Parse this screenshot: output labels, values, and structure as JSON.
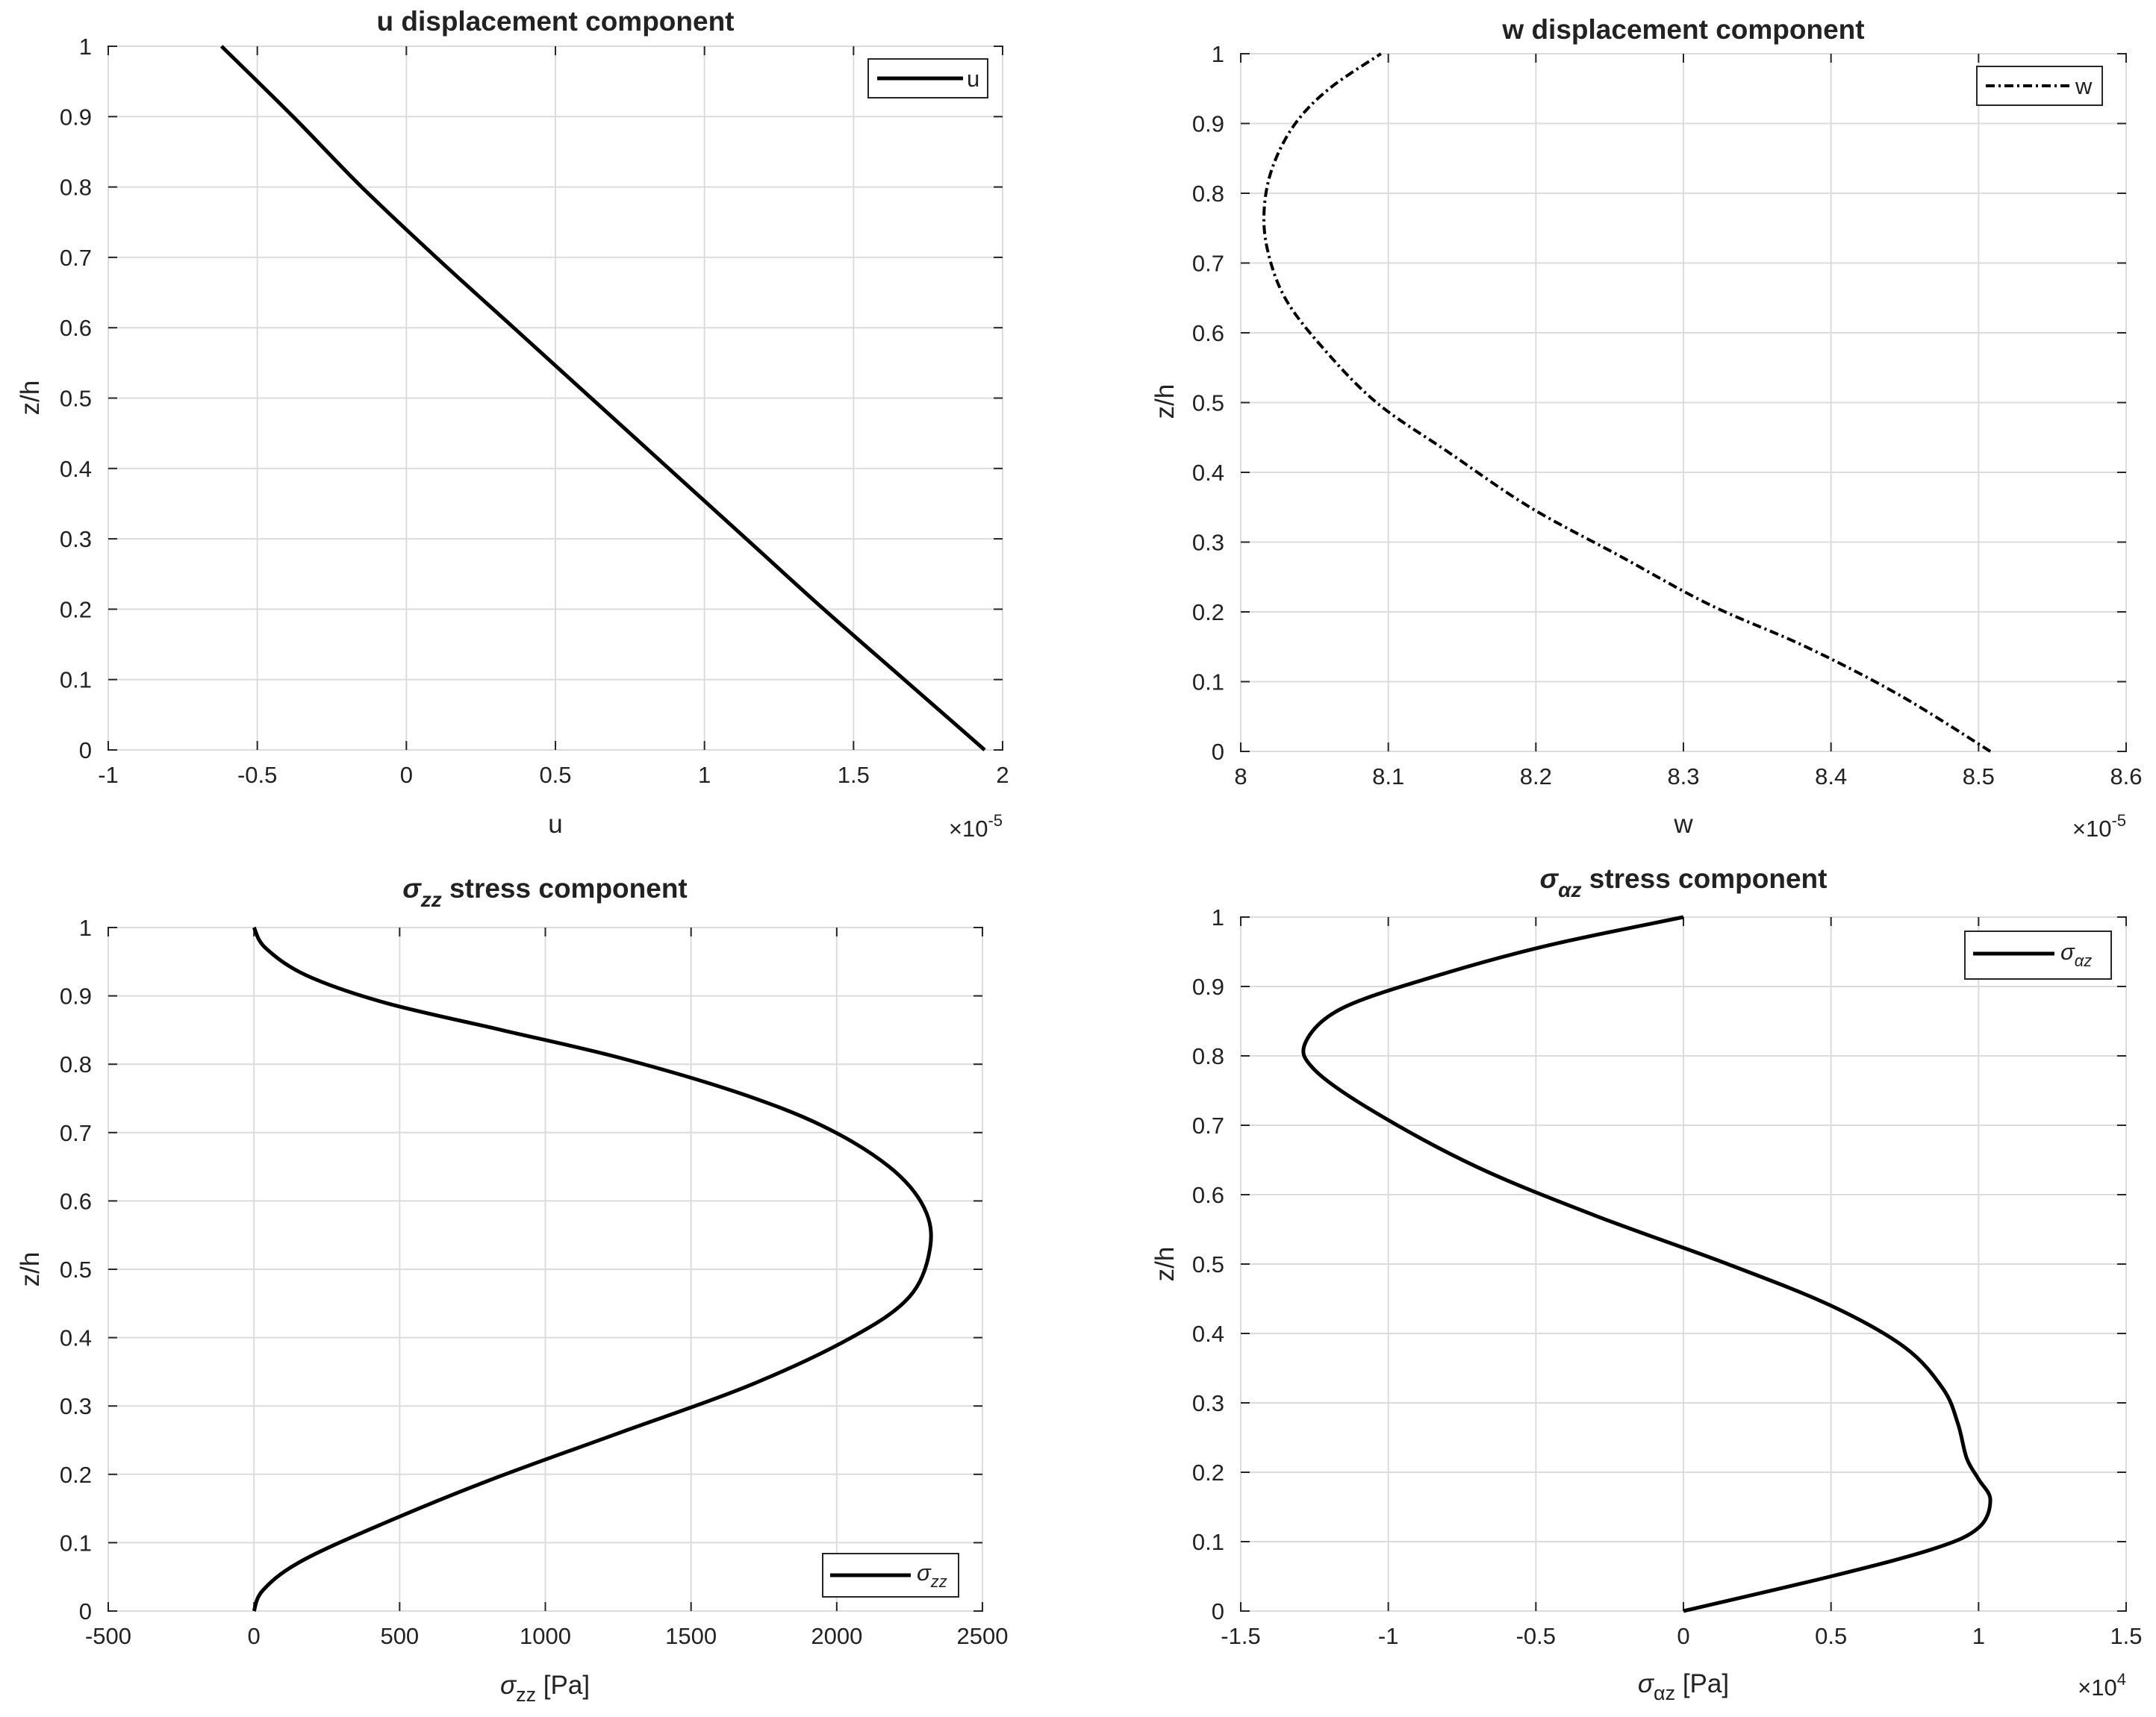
{
  "chart_data": [
    {
      "type": "line",
      "title": "u displacement component",
      "xlabel": "u",
      "ylabel": "z/h",
      "x_exponent": {
        "base": "×10",
        "exp": "-5"
      },
      "xlim": [
        -1,
        2
      ],
      "ylim": [
        0,
        1
      ],
      "xticks": [
        -1,
        -0.5,
        0,
        0.5,
        1,
        1.5,
        2
      ],
      "xtick_labels": [
        "-1",
        "-0.5",
        "0",
        "0.5",
        "1",
        "1.5",
        "2"
      ],
      "yticks": [
        0,
        0.1,
        0.2,
        0.3,
        0.4,
        0.5,
        0.6,
        0.7,
        0.8,
        0.9,
        1
      ],
      "ytick_labels": [
        "0",
        "0.1",
        "0.2",
        "0.3",
        "0.4",
        "0.5",
        "0.6",
        "0.7",
        "0.8",
        "0.9",
        "1"
      ],
      "grid": true,
      "legend": {
        "position": "top-right",
        "entries": [
          {
            "label": "u",
            "style": "solid"
          }
        ]
      },
      "series": [
        {
          "name": "u",
          "style": "solid",
          "x": [
            1.94,
            1.67,
            1.4,
            1.14,
            0.88,
            0.62,
            0.36,
            0.1,
            -0.15,
            -0.38,
            -0.62
          ],
          "y": [
            0,
            0.1,
            0.2,
            0.3,
            0.4,
            0.5,
            0.6,
            0.7,
            0.8,
            0.9,
            1
          ]
        }
      ]
    },
    {
      "type": "line",
      "title": "w displacement component",
      "xlabel": "w",
      "ylabel": "z/h",
      "x_exponent": {
        "base": "×10",
        "exp": "-5"
      },
      "xlim": [
        8,
        8.6
      ],
      "ylim": [
        0,
        1
      ],
      "xticks": [
        8,
        8.1,
        8.2,
        8.3,
        8.4,
        8.5,
        8.6
      ],
      "xtick_labels": [
        "8",
        "8.1",
        "8.2",
        "8.3",
        "8.4",
        "8.5",
        "8.6"
      ],
      "yticks": [
        0,
        0.1,
        0.2,
        0.3,
        0.4,
        0.5,
        0.6,
        0.7,
        0.8,
        0.9,
        1
      ],
      "ytick_labels": [
        "0",
        "0.1",
        "0.2",
        "0.3",
        "0.4",
        "0.5",
        "0.6",
        "0.7",
        "0.8",
        "0.9",
        "1"
      ],
      "grid": true,
      "legend": {
        "position": "top-right",
        "entries": [
          {
            "label": "w",
            "style": "dashdot"
          }
        ]
      },
      "series": [
        {
          "name": "w",
          "style": "dashdot",
          "x": [
            8.508,
            8.447,
            8.383,
            8.318,
            8.257,
            8.196,
            8.14,
            8.092,
            8.055,
            8.03,
            8.018,
            8.016,
            8.022,
            8.037,
            8.06,
            8.095
          ],
          "y": [
            0,
            0.08,
            0.15,
            0.21,
            0.28,
            0.35,
            0.43,
            0.5,
            0.58,
            0.65,
            0.72,
            0.78,
            0.84,
            0.9,
            0.95,
            1.0
          ]
        }
      ]
    },
    {
      "type": "line",
      "title": "σzz stress component",
      "title_symbol": "σ",
      "title_sub": "zz",
      "title_rest": " stress component",
      "xlabel": "σzz [Pa]",
      "xlabel_symbol": "σ",
      "xlabel_sub": "zz",
      "xlabel_rest": " [Pa]",
      "ylabel": "z/h",
      "xlim": [
        -500,
        2500
      ],
      "ylim": [
        0,
        1
      ],
      "xticks": [
        -500,
        0,
        500,
        1000,
        1500,
        2000,
        2500
      ],
      "xtick_labels": [
        "-500",
        "0",
        "500",
        "1000",
        "1500",
        "2000",
        "2500"
      ],
      "yticks": [
        0,
        0.1,
        0.2,
        0.3,
        0.4,
        0.5,
        0.6,
        0.7,
        0.8,
        0.9,
        1
      ],
      "ytick_labels": [
        "0",
        "0.1",
        "0.2",
        "0.3",
        "0.4",
        "0.5",
        "0.6",
        "0.7",
        "0.8",
        "0.9",
        "1"
      ],
      "grid": true,
      "legend": {
        "position": "bottom-right",
        "entries": [
          {
            "label": "σzz",
            "symbol": "σ",
            "sub": "zz",
            "style": "solid"
          }
        ]
      },
      "series": [
        {
          "name": "σzz",
          "style": "solid",
          "x": [
            0,
            30,
            150,
            400,
            800,
            1250,
            1700,
            2050,
            2250,
            2320,
            2300,
            2180,
            1950,
            1650,
            1250,
            850,
            450,
            180,
            40,
            0
          ],
          "y": [
            0,
            0.03,
            0.07,
            0.12,
            0.19,
            0.26,
            0.33,
            0.4,
            0.46,
            0.53,
            0.59,
            0.65,
            0.71,
            0.76,
            0.81,
            0.85,
            0.89,
            0.93,
            0.97,
            1.0
          ]
        }
      ]
    },
    {
      "type": "line",
      "title": "σαz stress component",
      "title_symbol": "σ",
      "title_sub": "αz",
      "title_rest": " stress component",
      "xlabel": "σαz [Pa]",
      "xlabel_symbol": "σ",
      "xlabel_sub": "αz",
      "xlabel_rest": " [Pa]",
      "ylabel": "z/h",
      "x_exponent": {
        "base": "×10",
        "exp": "4"
      },
      "xlim": [
        -1.5,
        1.5
      ],
      "ylim": [
        0,
        1
      ],
      "xticks": [
        -1.5,
        -1,
        -0.5,
        0,
        0.5,
        1,
        1.5
      ],
      "xtick_labels": [
        "-1.5",
        "-1",
        "-0.5",
        "0",
        "0.5",
        "1",
        "1.5"
      ],
      "yticks": [
        0,
        0.1,
        0.2,
        0.3,
        0.4,
        0.5,
        0.6,
        0.7,
        0.8,
        0.9,
        1
      ],
      "ytick_labels": [
        "0",
        "0.1",
        "0.2",
        "0.3",
        "0.4",
        "0.5",
        "0.6",
        "0.7",
        "0.8",
        "0.9",
        "1"
      ],
      "grid": true,
      "legend": {
        "position": "top-right",
        "entries": [
          {
            "label": "σαz",
            "symbol": "σ",
            "sub": "αz",
            "style": "solid"
          }
        ]
      },
      "series": [
        {
          "name": "σαz",
          "style": "solid",
          "x": [
            0,
            0.5,
            0.85,
            1.0,
            1.04,
            1.0,
            0.96,
            0.93,
            0.88,
            0.75,
            0.5,
            0.15,
            -0.3,
            -0.7,
            -1.05,
            -1.25,
            -1.28,
            -1.15,
            -0.8,
            -0.45,
            0
          ],
          "y": [
            0,
            0.05,
            0.09,
            0.12,
            0.16,
            0.19,
            0.22,
            0.27,
            0.32,
            0.38,
            0.44,
            0.5,
            0.57,
            0.64,
            0.72,
            0.78,
            0.82,
            0.87,
            0.92,
            0.96,
            1.0
          ]
        }
      ]
    }
  ]
}
